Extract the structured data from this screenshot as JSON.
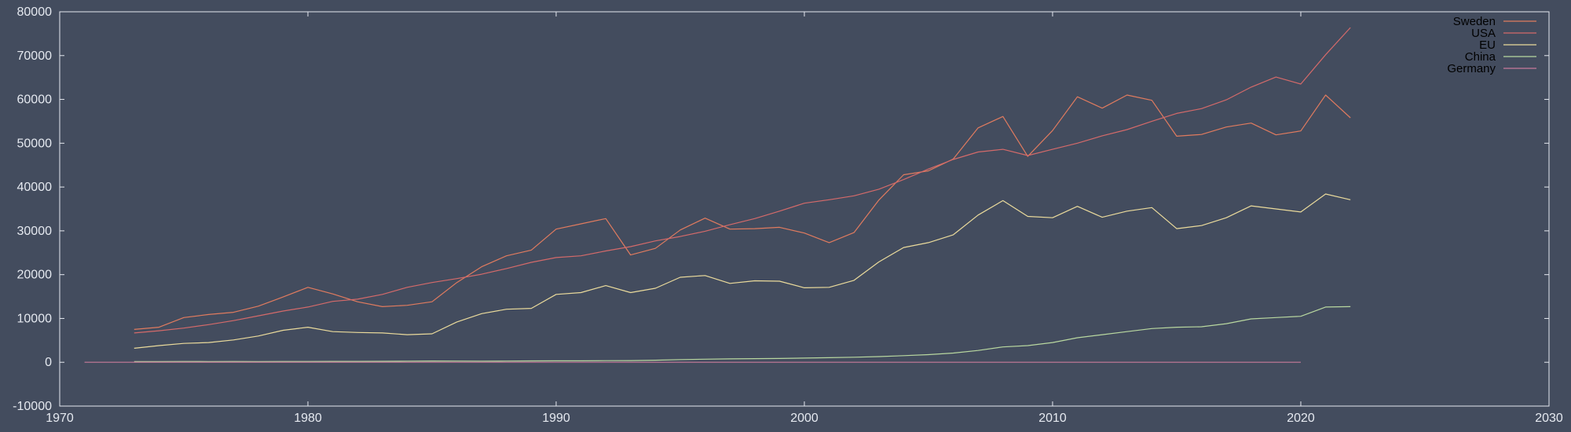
{
  "colors": {
    "background": "#434c5e",
    "axis": "#e5e9f0",
    "tick_text": "#e5e9f0",
    "legend_text": "#000000"
  },
  "chart_data": {
    "type": "line",
    "title": "",
    "xlabel": "",
    "ylabel": "",
    "xlim": [
      1970,
      2030
    ],
    "ylim": [
      -10000,
      80000
    ],
    "x_ticks": [
      1970,
      1980,
      1990,
      2000,
      2010,
      2020,
      2030
    ],
    "y_ticks": [
      -10000,
      0,
      10000,
      20000,
      30000,
      40000,
      50000,
      60000,
      70000,
      80000
    ],
    "grid": false,
    "legend_position": "top-right",
    "series": [
      {
        "name": "Sweden",
        "color": "#e07b5f",
        "x": [
          1973,
          1974,
          1975,
          1976,
          1977,
          1978,
          1979,
          1980,
          1981,
          1982,
          1983,
          1984,
          1985,
          1986,
          1987,
          1988,
          1989,
          1990,
          1991,
          1992,
          1993,
          1994,
          1995,
          1996,
          1997,
          1998,
          1999,
          2000,
          2001,
          2002,
          2003,
          2004,
          2005,
          2006,
          2007,
          2008,
          2009,
          2010,
          2011,
          2012,
          2013,
          2014,
          2015,
          2016,
          2017,
          2018,
          2019,
          2020,
          2021,
          2022
        ],
        "values": [
          7500,
          8000,
          10200,
          10900,
          11400,
          12800,
          14900,
          17100,
          15600,
          13800,
          12700,
          13000,
          13800,
          18200,
          21800,
          24300,
          25600,
          30400,
          31600,
          32800,
          24500,
          26000,
          30200,
          32900,
          30400,
          30500,
          30800,
          29500,
          27300,
          29600,
          37000,
          42800,
          43700,
          46400,
          53500,
          56100,
          47000,
          52900,
          60600,
          58000,
          61000,
          59800,
          51600,
          52000,
          53700,
          54600,
          51900,
          52800,
          61000,
          55800
        ]
      },
      {
        "name": "USA",
        "color": "#d46a6a",
        "x": [
          1973,
          1974,
          1975,
          1976,
          1977,
          1978,
          1979,
          1980,
          1981,
          1982,
          1983,
          1984,
          1985,
          1986,
          1987,
          1988,
          1989,
          1990,
          1991,
          1992,
          1993,
          1994,
          1995,
          1996,
          1997,
          1998,
          1999,
          2000,
          2001,
          2002,
          2003,
          2004,
          2005,
          2006,
          2007,
          2008,
          2009,
          2010,
          2011,
          2012,
          2013,
          2014,
          2015,
          2016,
          2017,
          2018,
          2019,
          2020,
          2021,
          2022
        ],
        "values": [
          6700,
          7200,
          7800,
          8600,
          9500,
          10600,
          11700,
          12600,
          13900,
          14400,
          15500,
          17100,
          18200,
          19100,
          20100,
          21400,
          22800,
          23900,
          24300,
          25400,
          26400,
          27700,
          28700,
          29900,
          31400,
          32800,
          34500,
          36300,
          37100,
          38000,
          39500,
          41700,
          44100,
          46300,
          48000,
          48600,
          47200,
          48600,
          50000,
          51700,
          53100,
          55000,
          56800,
          57900,
          59900,
          62800,
          65100,
          63500,
          70200,
          76400
        ]
      },
      {
        "name": "EU",
        "color": "#ebdb9c",
        "x": [
          1973,
          1974,
          1975,
          1976,
          1977,
          1978,
          1979,
          1980,
          1981,
          1982,
          1983,
          1984,
          1985,
          1986,
          1987,
          1988,
          1989,
          1990,
          1991,
          1992,
          1993,
          1994,
          1995,
          1996,
          1997,
          1998,
          1999,
          2000,
          2001,
          2002,
          2003,
          2004,
          2005,
          2006,
          2007,
          2008,
          2009,
          2010,
          2011,
          2012,
          2013,
          2014,
          2015,
          2016,
          2017,
          2018,
          2019,
          2020,
          2021,
          2022
        ],
        "values": [
          3200,
          3800,
          4300,
          4500,
          5100,
          6000,
          7300,
          8000,
          7000,
          6800,
          6700,
          6300,
          6500,
          9200,
          11100,
          12100,
          12300,
          15500,
          15900,
          17500,
          15900,
          16900,
          19400,
          19800,
          18000,
          18600,
          18500,
          17000,
          17100,
          18700,
          22900,
          26200,
          27300,
          29100,
          33600,
          36900,
          33300,
          33000,
          35600,
          33100,
          34500,
          35300,
          30500,
          31200,
          33000,
          35700,
          35000,
          34300,
          38400,
          37100
        ]
      },
      {
        "name": "China",
        "color": "#b9d8a0",
        "x": [
          1973,
          1974,
          1975,
          1976,
          1977,
          1978,
          1979,
          1980,
          1981,
          1982,
          1983,
          1984,
          1985,
          1986,
          1987,
          1988,
          1989,
          1990,
          1991,
          1992,
          1993,
          1994,
          1995,
          1996,
          1997,
          1998,
          1999,
          2000,
          2001,
          2002,
          2003,
          2004,
          2005,
          2006,
          2007,
          2008,
          2009,
          2010,
          2011,
          2012,
          2013,
          2014,
          2015,
          2016,
          2017,
          2018,
          2019,
          2020,
          2021,
          2022
        ],
        "values": [
          160,
          160,
          180,
          160,
          190,
          160,
          180,
          190,
          200,
          200,
          220,
          250,
          290,
          280,
          250,
          280,
          310,
          320,
          330,
          370,
          380,
          470,
          610,
          700,
          770,
          830,
          870,
          950,
          1050,
          1150,
          1290,
          1510,
          1750,
          2100,
          2700,
          3500,
          3800,
          4500,
          5600,
          6300,
          7000,
          7700,
          8000,
          8100,
          8800,
          9900,
          10200,
          10500,
          12600,
          12700
        ]
      },
      {
        "name": "Germany",
        "color": "#c77a9a",
        "x": [
          1971,
          1975,
          1980,
          1985,
          1990,
          1995,
          2000,
          2005,
          2010,
          2015,
          2020
        ],
        "values": [
          0,
          0,
          0,
          0,
          0,
          0,
          0,
          0,
          0,
          0,
          0
        ]
      }
    ]
  }
}
